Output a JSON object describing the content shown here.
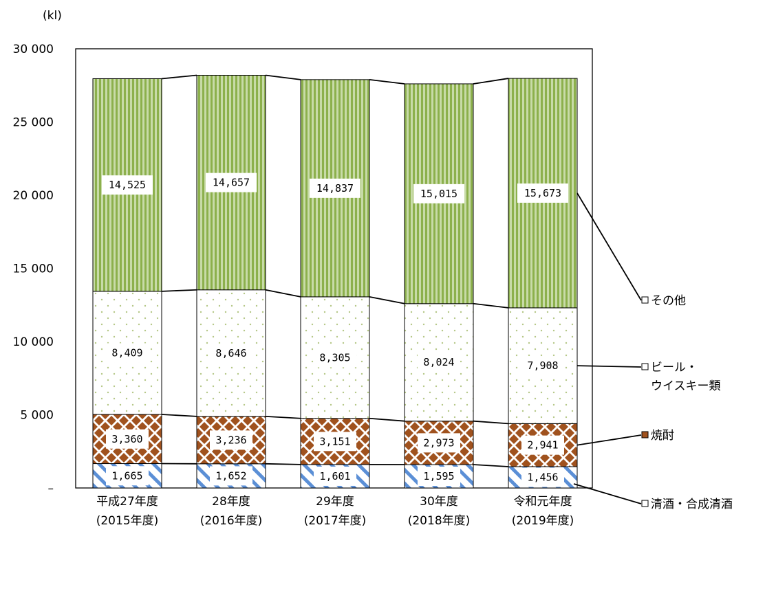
{
  "chart_data": {
    "type": "bar",
    "stacked": true,
    "unit_label": "(kl)",
    "categories": [
      [
        "平成27年度",
        "(2015年度)"
      ],
      [
        "28年度",
        "(2016年度)"
      ],
      [
        "29年度",
        "(2017年度)"
      ],
      [
        "30年度",
        "(2018年度)"
      ],
      [
        "令和元年度",
        "(2019年度)"
      ]
    ],
    "y_ticks": [
      "–",
      "5 000",
      "10 000",
      "15 000",
      "20 000",
      "25 000",
      "30 000"
    ],
    "ylim": [
      0,
      30000
    ],
    "series": [
      {
        "name": "清酒・合成清酒",
        "values": [
          1665,
          1652,
          1601,
          1595,
          1456
        ],
        "labels": [
          "1,665",
          "1,652",
          "1,601",
          "1,595",
          "1,456"
        ],
        "color": "#6a98d8",
        "pattern": "diagonal-stripes"
      },
      {
        "name": "焼酎",
        "values": [
          3360,
          3236,
          3151,
          2973,
          2941
        ],
        "labels": [
          "3,360",
          "3,236",
          "3,151",
          "2,973",
          "2,941"
        ],
        "color": "#a0521e",
        "pattern": "diamonds"
      },
      {
        "name": "ビール・ウイスキー類",
        "name_lines": [
          "ビール・",
          "ウイスキー類"
        ],
        "values": [
          8409,
          8646,
          8305,
          8024,
          7908
        ],
        "labels": [
          "8,409",
          "8,646",
          "8,305",
          "8,024",
          "7,908"
        ],
        "color": "#c9d6a8",
        "pattern": "dots"
      },
      {
        "name": "その他",
        "values": [
          14525,
          14657,
          14837,
          15015,
          15673
        ],
        "labels": [
          "14,525",
          "14,657",
          "14,837",
          "15,015",
          "15,673"
        ],
        "color": "#8cb04c",
        "pattern": "vertical-stripes"
      }
    ],
    "legend_position": "right",
    "grid": false
  }
}
